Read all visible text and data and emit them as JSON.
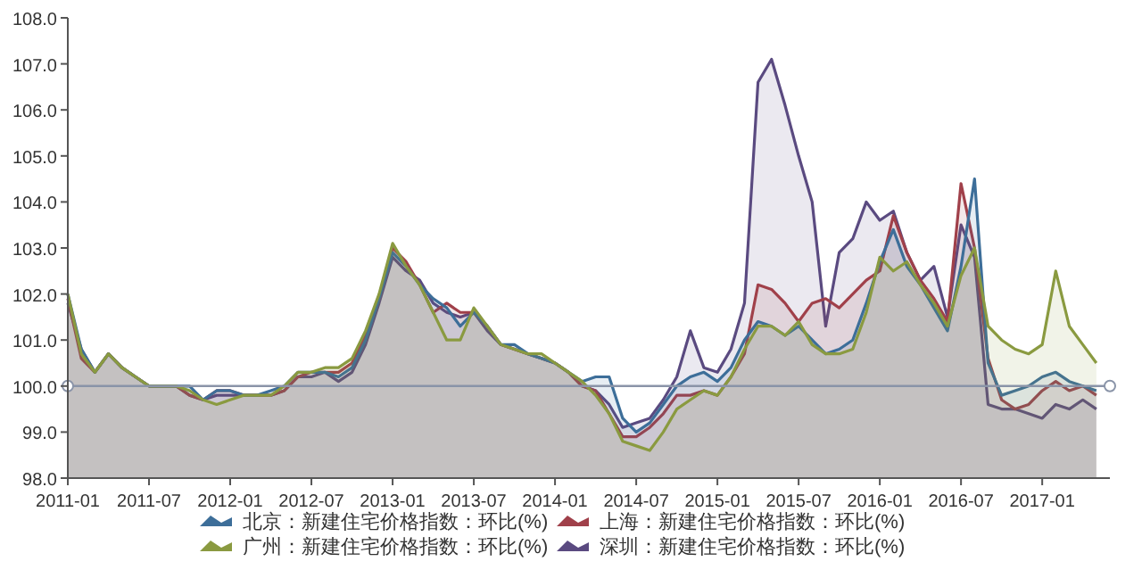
{
  "chart_data": {
    "type": "area",
    "x": [
      "2011-01",
      "2011-02",
      "2011-03",
      "2011-04",
      "2011-05",
      "2011-06",
      "2011-07",
      "2011-08",
      "2011-09",
      "2011-10",
      "2011-11",
      "2011-12",
      "2012-01",
      "2012-02",
      "2012-03",
      "2012-04",
      "2012-05",
      "2012-06",
      "2012-07",
      "2012-08",
      "2012-09",
      "2012-10",
      "2012-11",
      "2012-12",
      "2013-01",
      "2013-02",
      "2013-03",
      "2013-04",
      "2013-05",
      "2013-06",
      "2013-07",
      "2013-08",
      "2013-09",
      "2013-10",
      "2013-11",
      "2013-12",
      "2014-01",
      "2014-02",
      "2014-03",
      "2014-04",
      "2014-05",
      "2014-06",
      "2014-07",
      "2014-08",
      "2014-09",
      "2014-10",
      "2014-11",
      "2014-12",
      "2015-01",
      "2015-02",
      "2015-03",
      "2015-04",
      "2015-05",
      "2015-06",
      "2015-07",
      "2015-08",
      "2015-09",
      "2015-10",
      "2015-11",
      "2015-12",
      "2016-01",
      "2016-02",
      "2016-03",
      "2016-04",
      "2016-05",
      "2016-06",
      "2016-07",
      "2016-08",
      "2016-09",
      "2016-10",
      "2016-11",
      "2016-12",
      "2017-01",
      "2017-02",
      "2017-03",
      "2017-04",
      "2017-05"
    ],
    "series": [
      {
        "name": "深圳：新建住宅价格指数：环比(%)",
        "color": "#5a4a80",
        "values": [
          101.8,
          100.8,
          100.3,
          100.7,
          100.4,
          100.2,
          100.0,
          100.0,
          100.0,
          99.8,
          99.7,
          99.8,
          99.8,
          99.8,
          99.8,
          99.8,
          99.9,
          100.2,
          100.2,
          100.3,
          100.1,
          100.3,
          100.9,
          101.8,
          102.8,
          102.5,
          102.3,
          101.8,
          101.6,
          101.5,
          101.6,
          101.2,
          100.9,
          100.8,
          100.7,
          100.6,
          100.5,
          100.3,
          100.0,
          99.9,
          99.6,
          99.1,
          99.2,
          99.3,
          99.7,
          100.2,
          101.2,
          100.4,
          100.3,
          100.8,
          101.8,
          106.6,
          107.1,
          106.1,
          105.0,
          104.0,
          101.3,
          102.9,
          103.2,
          104.0,
          103.6,
          103.8,
          102.9,
          102.3,
          102.6,
          101.5,
          103.5,
          102.8,
          99.6,
          99.5,
          99.5,
          99.4,
          99.3,
          99.6,
          99.5,
          99.7,
          99.5
        ]
      },
      {
        "name": "上海：新建住宅价格指数：环比(%)",
        "color": "#a0404a",
        "values": [
          101.9,
          100.6,
          100.3,
          100.7,
          100.4,
          100.2,
          100.0,
          100.0,
          100.0,
          99.8,
          99.7,
          99.9,
          99.9,
          99.8,
          99.8,
          99.8,
          99.9,
          100.2,
          100.3,
          100.3,
          100.3,
          100.5,
          101.1,
          101.9,
          103.0,
          102.7,
          102.2,
          101.6,
          101.8,
          101.6,
          101.6,
          101.3,
          100.9,
          100.8,
          100.7,
          100.6,
          100.5,
          100.3,
          100.0,
          99.9,
          99.4,
          98.9,
          98.9,
          99.1,
          99.4,
          99.8,
          99.8,
          99.9,
          99.8,
          100.2,
          100.7,
          102.2,
          102.1,
          101.8,
          101.4,
          101.8,
          101.9,
          101.7,
          102.0,
          102.3,
          102.5,
          103.7,
          102.9,
          102.3,
          101.9,
          101.4,
          104.4,
          103.0,
          100.6,
          99.7,
          99.5,
          99.6,
          99.9,
          100.1,
          99.9,
          100.0,
          99.8
        ]
      },
      {
        "name": "北京：新建住宅价格指数：环比(%)",
        "color": "#3d6e99",
        "values": [
          102.0,
          100.8,
          100.3,
          100.7,
          100.4,
          100.2,
          100.0,
          100.0,
          100.0,
          100.0,
          99.7,
          99.9,
          99.9,
          99.8,
          99.8,
          99.9,
          100.0,
          100.3,
          100.3,
          100.3,
          100.2,
          100.4,
          101.0,
          101.9,
          102.9,
          102.6,
          102.2,
          101.9,
          101.7,
          101.3,
          101.6,
          101.3,
          100.9,
          100.9,
          100.7,
          100.6,
          100.5,
          100.3,
          100.1,
          100.2,
          100.2,
          99.3,
          99.0,
          99.2,
          99.6,
          100.0,
          100.2,
          100.3,
          100.1,
          100.4,
          101.0,
          101.4,
          101.3,
          101.1,
          101.3,
          101.0,
          100.7,
          100.8,
          101.0,
          101.8,
          102.7,
          103.4,
          102.6,
          102.2,
          101.7,
          101.2,
          102.6,
          104.5,
          100.5,
          99.8,
          99.9,
          100.0,
          100.2,
          100.3,
          100.1,
          100.0,
          99.9
        ]
      },
      {
        "name": "广州：新建住宅价格指数：环比(%)",
        "color": "#8a9a40",
        "values": [
          102.0,
          100.7,
          100.3,
          100.7,
          100.4,
          100.2,
          100.0,
          100.0,
          100.0,
          99.9,
          99.7,
          99.6,
          99.7,
          99.8,
          99.8,
          99.8,
          100.0,
          100.3,
          100.3,
          100.4,
          100.4,
          100.6,
          101.2,
          102.0,
          103.1,
          102.6,
          102.2,
          101.6,
          101.0,
          101.0,
          101.7,
          101.3,
          100.9,
          100.8,
          100.7,
          100.7,
          100.5,
          100.3,
          100.1,
          99.8,
          99.4,
          98.8,
          98.7,
          98.6,
          99.0,
          99.5,
          99.7,
          99.9,
          99.8,
          100.2,
          100.8,
          101.3,
          101.3,
          101.1,
          101.4,
          100.9,
          100.7,
          100.7,
          100.8,
          101.6,
          102.8,
          102.5,
          102.7,
          102.2,
          101.8,
          101.3,
          102.4,
          103.0,
          101.3,
          101.0,
          100.8,
          100.7,
          100.9,
          102.5,
          101.3,
          100.9,
          100.5
        ]
      }
    ],
    "xlim": [
      "2011-01",
      "2017-06"
    ],
    "xticks": [
      {
        "value": "2011-01",
        "label": "2011-01"
      },
      {
        "value": "2011-07",
        "label": "2011-07"
      },
      {
        "value": "2012-01",
        "label": "2012-01"
      },
      {
        "value": "2012-07",
        "label": "2012-07"
      },
      {
        "value": "2013-01",
        "label": "2013-01"
      },
      {
        "value": "2013-07",
        "label": "2013-07"
      },
      {
        "value": "2014-01",
        "label": "2014-01"
      },
      {
        "value": "2014-07",
        "label": "2014-07"
      },
      {
        "value": "2015-01",
        "label": "2015-01"
      },
      {
        "value": "2015-07",
        "label": "2015-07"
      },
      {
        "value": "2016-01",
        "label": "2016-01"
      },
      {
        "value": "2016-07",
        "label": "2016-07"
      },
      {
        "value": "2017-01",
        "label": "2017-01"
      }
    ],
    "ylim": [
      98,
      108
    ],
    "yticks": [
      {
        "value": 98,
        "label": "98.0"
      },
      {
        "value": 99,
        "label": "99.0"
      },
      {
        "value": 100,
        "label": "100.0"
      },
      {
        "value": 101,
        "label": "101.0"
      },
      {
        "value": 102,
        "label": "102.0"
      },
      {
        "value": 103,
        "label": "103.0"
      },
      {
        "value": 104,
        "label": "104.0"
      },
      {
        "value": 105,
        "label": "105.0"
      },
      {
        "value": 106,
        "label": "106.0"
      },
      {
        "value": 107,
        "label": "107.0"
      },
      {
        "value": 108,
        "label": "108.0"
      }
    ],
    "ref_lines": [
      {
        "axis": "y",
        "value": 100,
        "color": "#8a94a8"
      }
    ],
    "legend": "bottom",
    "grid": false
  }
}
